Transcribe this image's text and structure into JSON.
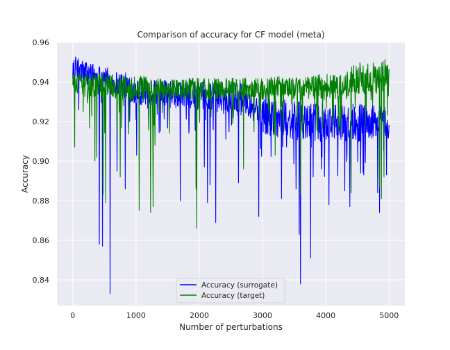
{
  "chart_data": {
    "type": "line",
    "title": "Comparison of accuracy for CF model (meta)",
    "xlabel": "Number of perturbations",
    "ylabel": "Accuracy",
    "xlim": [
      -250,
      5250
    ],
    "ylim": [
      0.827,
      0.96
    ],
    "xticks": [
      0,
      1000,
      2000,
      3000,
      4000,
      5000
    ],
    "yticks": [
      0.84,
      0.86,
      0.88,
      0.9,
      0.92,
      0.94,
      0.96
    ],
    "xtick_labels": [
      "0",
      "1000",
      "2000",
      "3000",
      "4000",
      "5000"
    ],
    "ytick_labels": [
      "0.84",
      "0.86",
      "0.88",
      "0.90",
      "0.92",
      "0.94",
      "0.96"
    ],
    "grid": true,
    "background": "#eaeaf2",
    "legend_placement": "lower center",
    "series": [
      {
        "name": "Accuracy (surrogate)",
        "color": "#0000ff",
        "x": [
          0,
          50,
          100,
          200,
          300,
          400,
          500,
          600,
          700,
          800,
          900,
          1000,
          1100,
          1200,
          1300,
          1400,
          1500,
          1600,
          1700,
          1800,
          1900,
          2000,
          2100,
          2200,
          2300,
          2400,
          2500,
          2600,
          2700,
          2800,
          2900,
          3000,
          3100,
          3200,
          3300,
          3400,
          3500,
          3600,
          3700,
          3800,
          3900,
          4000,
          4100,
          4200,
          4300,
          4400,
          4500,
          4600,
          4700,
          4800,
          4900,
          5000
        ],
        "upper": [
          0.954,
          0.953,
          0.952,
          0.951,
          0.95,
          0.949,
          0.948,
          0.947,
          0.946,
          0.945,
          0.944,
          0.943,
          0.942,
          0.942,
          0.941,
          0.941,
          0.941,
          0.941,
          0.94,
          0.94,
          0.94,
          0.94,
          0.94,
          0.94,
          0.94,
          0.94,
          0.94,
          0.94,
          0.939,
          0.938,
          0.936,
          0.934,
          0.933,
          0.932,
          0.932,
          0.931,
          0.93,
          0.93,
          0.929,
          0.929,
          0.929,
          0.929,
          0.929,
          0.929,
          0.929,
          0.929,
          0.929,
          0.929,
          0.929,
          0.928,
          0.928,
          0.928
        ],
        "lower": [
          0.942,
          0.941,
          0.94,
          0.938,
          0.937,
          0.936,
          0.935,
          0.934,
          0.933,
          0.932,
          0.93,
          0.929,
          0.928,
          0.928,
          0.927,
          0.927,
          0.927,
          0.926,
          0.926,
          0.926,
          0.926,
          0.926,
          0.926,
          0.926,
          0.926,
          0.925,
          0.925,
          0.925,
          0.924,
          0.922,
          0.918,
          0.914,
          0.913,
          0.912,
          0.912,
          0.911,
          0.911,
          0.91,
          0.91,
          0.91,
          0.91,
          0.91,
          0.91,
          0.91,
          0.91,
          0.91,
          0.91,
          0.91,
          0.91,
          0.91,
          0.91,
          0.91
        ],
        "dips": [
          [
            30,
            0.928
          ],
          [
            420,
            0.858
          ],
          [
            470,
            0.857
          ],
          [
            590,
            0.833
          ],
          [
            700,
            0.895
          ],
          [
            830,
            0.886
          ],
          [
            1010,
            0.903
          ],
          [
            1230,
            0.893
          ],
          [
            1700,
            0.88
          ],
          [
            1950,
            0.887
          ],
          [
            2080,
            0.897
          ],
          [
            2130,
            0.879
          ],
          [
            2170,
            0.888
          ],
          [
            2260,
            0.869
          ],
          [
            2620,
            0.889
          ],
          [
            2940,
            0.872
          ],
          [
            3300,
            0.881
          ],
          [
            3530,
            0.886
          ],
          [
            3580,
            0.863
          ],
          [
            3600,
            0.838
          ],
          [
            3760,
            0.851
          ],
          [
            3800,
            0.892
          ],
          [
            3930,
            0.896
          ],
          [
            4050,
            0.878
          ],
          [
            4300,
            0.885
          ],
          [
            4380,
            0.877
          ],
          [
            4600,
            0.893
          ],
          [
            4820,
            0.884
          ],
          [
            4850,
            0.874
          ],
          [
            4960,
            0.893
          ]
        ]
      },
      {
        "name": "Accuracy (target)",
        "color": "#008000",
        "x": [
          0,
          50,
          100,
          200,
          300,
          400,
          500,
          600,
          700,
          800,
          900,
          1000,
          1100,
          1200,
          1300,
          1400,
          1500,
          1600,
          1700,
          1800,
          1900,
          2000,
          2100,
          2200,
          2300,
          2400,
          2500,
          2600,
          2700,
          2800,
          2900,
          3000,
          3100,
          3200,
          3300,
          3400,
          3500,
          3600,
          3700,
          3800,
          3900,
          4000,
          4100,
          4200,
          4300,
          4400,
          4500,
          4600,
          4700,
          4800,
          4900,
          5000
        ],
        "upper": [
          0.946,
          0.946,
          0.945,
          0.945,
          0.945,
          0.945,
          0.944,
          0.944,
          0.944,
          0.944,
          0.943,
          0.943,
          0.943,
          0.943,
          0.942,
          0.942,
          0.942,
          0.942,
          0.942,
          0.942,
          0.942,
          0.942,
          0.942,
          0.942,
          0.942,
          0.942,
          0.942,
          0.942,
          0.942,
          0.942,
          0.942,
          0.942,
          0.942,
          0.943,
          0.943,
          0.943,
          0.943,
          0.943,
          0.943,
          0.943,
          0.944,
          0.944,
          0.944,
          0.945,
          0.946,
          0.948,
          0.95,
          0.95,
          0.95,
          0.95,
          0.951,
          0.952
        ],
        "lower": [
          0.936,
          0.934,
          0.933,
          0.932,
          0.932,
          0.932,
          0.931,
          0.931,
          0.931,
          0.931,
          0.931,
          0.931,
          0.931,
          0.931,
          0.931,
          0.931,
          0.931,
          0.931,
          0.931,
          0.931,
          0.931,
          0.931,
          0.931,
          0.931,
          0.931,
          0.931,
          0.931,
          0.931,
          0.931,
          0.931,
          0.931,
          0.931,
          0.931,
          0.931,
          0.931,
          0.931,
          0.931,
          0.931,
          0.931,
          0.931,
          0.931,
          0.931,
          0.931,
          0.931,
          0.932,
          0.933,
          0.934,
          0.934,
          0.934,
          0.934,
          0.934,
          0.935
        ],
        "dips": [
          [
            30,
            0.907
          ],
          [
            350,
            0.9
          ],
          [
            380,
            0.902
          ],
          [
            480,
            0.883
          ],
          [
            520,
            0.879
          ],
          [
            750,
            0.892
          ],
          [
            1050,
            0.875
          ],
          [
            1230,
            0.874
          ],
          [
            1270,
            0.877
          ],
          [
            1300,
            0.908
          ],
          [
            1950,
            0.886
          ],
          [
            1960,
            0.866
          ],
          [
            2700,
            0.896
          ],
          [
            3200,
            0.903
          ],
          [
            3600,
            0.883
          ],
          [
            4400,
            0.884
          ],
          [
            4850,
            0.887
          ],
          [
            4880,
            0.881
          ],
          [
            4920,
            0.892
          ]
        ]
      }
    ]
  }
}
